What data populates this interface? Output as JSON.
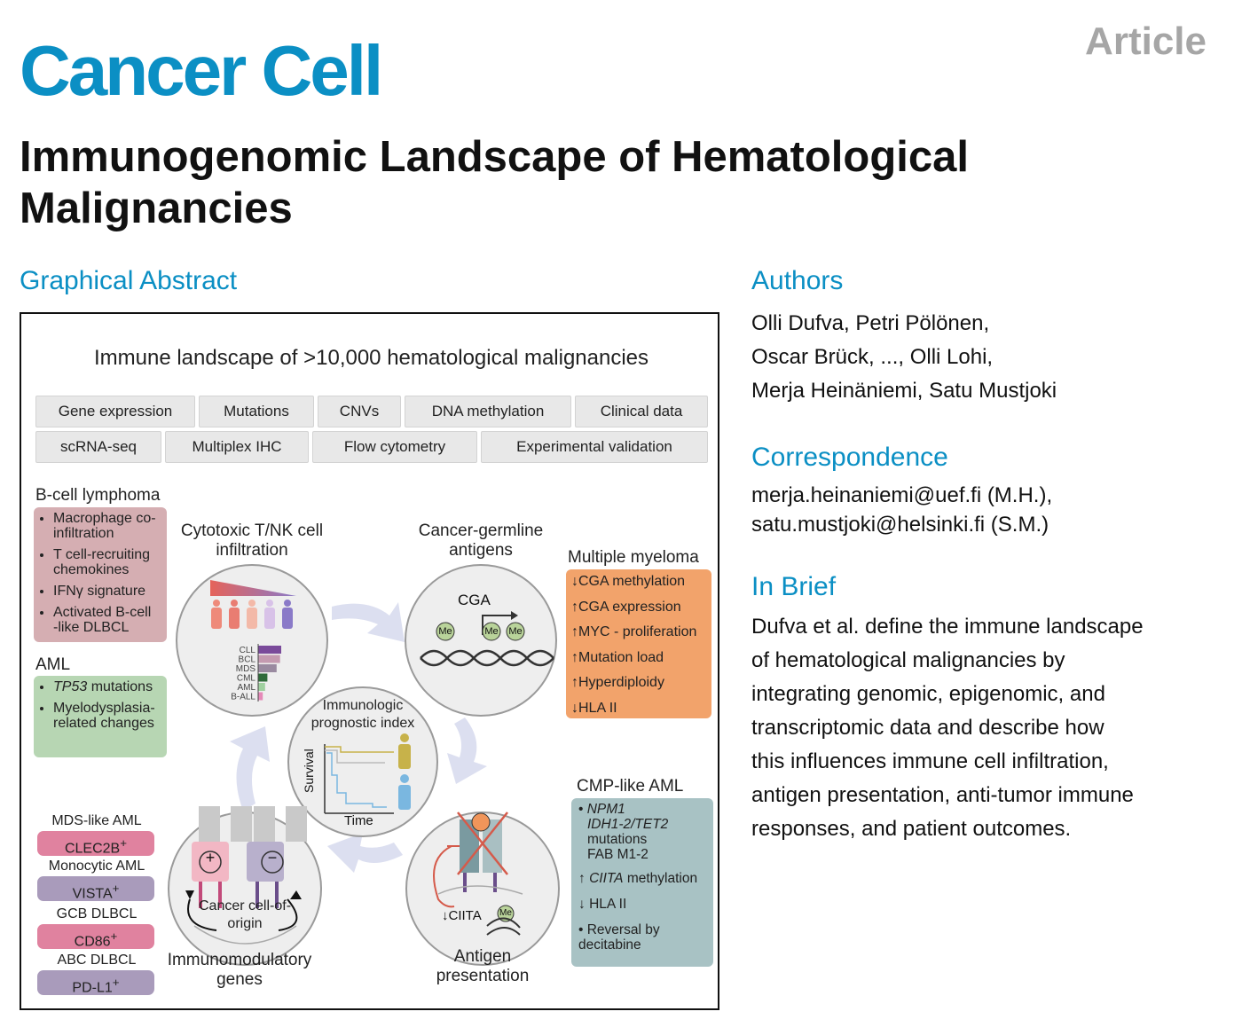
{
  "header": {
    "journal": "Cancer Cell",
    "article_type": "Article",
    "title": "Immunogenomic Landscape of Hematological Malignancies"
  },
  "graphical_abstract": {
    "heading": "Graphical Abstract",
    "title": "Immune landscape of >10,000 hematological malignancies",
    "data_types_row1": [
      "Gene expression",
      "Mutations",
      "CNVs",
      "DNA methylation",
      "Clinical data"
    ],
    "data_types_row2": [
      "scRNA-seq",
      "Multiplex IHC",
      "Flow cytometry",
      "Experimental validation"
    ],
    "b_cell_lymphoma": {
      "title": "B-cell lymphoma",
      "items": [
        "Macrophage co-infiltration",
        "T cell-recruiting chemokines",
        "IFNγ signature",
        "Activated B-cell -like DLBCL"
      ]
    },
    "aml": {
      "title": "AML",
      "item1_gene": "TP53",
      "item1_rest": "mutations",
      "item2": "Myelodysplasia-related changes"
    },
    "cytotoxic": {
      "title": "Cytotoxic T/NK cell infiltration",
      "bar_labels": [
        "CLL",
        "BCL",
        "MDS",
        "CML",
        "AML",
        "B-ALL"
      ],
      "bar_values": [
        1.0,
        0.95,
        0.8,
        0.4,
        0.3,
        0.2
      ],
      "bar_colors": [
        "#7a4a9a",
        "#c49ab0",
        "#9a8aa0",
        "#2f6b3a",
        "#9fd09f",
        "#e58ab8"
      ]
    },
    "cga": {
      "title": "Cancer-germline antigens",
      "gene_label": "CGA",
      "me_label": "Me"
    },
    "multiple_myeloma": {
      "title": "Multiple myeloma",
      "rows": [
        {
          "arrow": "↓",
          "text": "CGA methylation"
        },
        {
          "arrow": "↑",
          "text": "CGA expression"
        },
        {
          "arrow": "↑",
          "text": "MYC - proliferation"
        },
        {
          "arrow": "↑",
          "text": "Mutation load"
        },
        {
          "arrow": "↑",
          "text": "Hyperdiploidy"
        },
        {
          "arrow": "↓",
          "text": "HLA II"
        }
      ]
    },
    "center": {
      "title": "Immunologic prognostic index",
      "ylabel": "Survival",
      "xlabel": "Time"
    },
    "cmp_aml": {
      "title": "CMP-like AML",
      "genes1": "NPM1",
      "genes2": "IDH1-2/TET2",
      "mutations": "mutations",
      "fab": "FAB M1-2",
      "ciita_arrow": "↑",
      "ciita_gene": "CIITA",
      "ciita_rest": "methylation",
      "hla_arrow": "↓",
      "hla": "HLA II",
      "reversal": "Reversal by decitabine"
    },
    "antigen": {
      "title": "Antigen presentation",
      "ciita_label": "↓CIITA",
      "me_label": "Me"
    },
    "immunomodulatory": {
      "title": "Immunomodulatory genes",
      "center_label": "Cancer cell-of-origin",
      "plus": "+",
      "minus": "−",
      "markers": [
        {
          "group": "MDS-like AML",
          "gene": "CLEC2B",
          "sup": "+",
          "color": "#e0829f"
        },
        {
          "group": "Monocytic AML",
          "gene": "VISTA",
          "sup": "+",
          "color": "#a99bbb"
        },
        {
          "group": "GCB DLBCL",
          "gene": "CD86",
          "sup": "+",
          "color": "#e0829f"
        },
        {
          "group": "ABC DLBCL",
          "gene": "PD-L1",
          "sup": "+",
          "color": "#a99bbb"
        }
      ]
    }
  },
  "authors": {
    "heading": "Authors",
    "line1": "Olli Dufva, Petri Pölönen,",
    "line2": "Oscar Brück, ..., Olli Lohi,",
    "line3": "Merja Heinäniemi, Satu Mustjoki"
  },
  "correspondence": {
    "heading": "Correspondence",
    "line1": "merja.heinaniemi@uef.fi (M.H.),",
    "line2": "satu.mustjoki@helsinki.fi (S.M.)"
  },
  "in_brief": {
    "heading": "In Brief",
    "lines": [
      "Dufva et al. define the immune landscape",
      "of hematological malignancies by",
      "integrating genomic, epigenomic, and",
      "transcriptomic data and describe how",
      "this influences immune cell infiltration,",
      "antigen presentation, anti-tumor immune",
      "responses, and patient outcomes."
    ]
  },
  "colors": {
    "brand": "#0b8fc4",
    "mm_panel": "#f2a36b",
    "cmp_panel": "#a8c2c4",
    "bcl_panel": "#d5aeb2",
    "aml_panel": "#b7d6b3"
  }
}
